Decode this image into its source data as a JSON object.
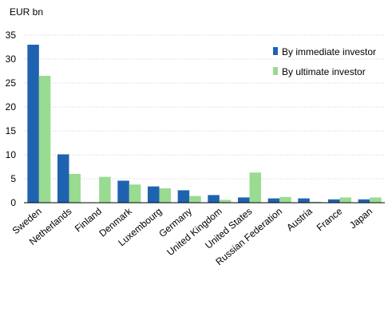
{
  "chart_data": {
    "type": "bar",
    "unit_label": "EUR bn",
    "categories": [
      "Sweden",
      "Netherlands",
      "Finland",
      "Denmark",
      "Luxembourg",
      "Germany",
      "United Kingdom",
      "United States",
      "Russian Federation",
      "Austria",
      "France",
      "Japan"
    ],
    "series": [
      {
        "name": "By immediate investor",
        "color": "#1f63b0",
        "values": [
          33.0,
          10.1,
          0.0,
          4.6,
          3.4,
          2.6,
          1.6,
          1.1,
          0.9,
          0.9,
          0.7,
          0.7
        ]
      },
      {
        "name": "By ultimate investor",
        "color": "#99db91",
        "values": [
          26.5,
          6.0,
          5.4,
          3.8,
          3.0,
          1.4,
          0.6,
          6.3,
          1.2,
          0.2,
          1.1,
          1.1
        ]
      }
    ],
    "y_ticks": [
      0,
      5,
      10,
      15,
      20,
      25,
      30,
      35
    ],
    "ylim": [
      0,
      35
    ],
    "grid": true,
    "legend_position": "top-right"
  }
}
